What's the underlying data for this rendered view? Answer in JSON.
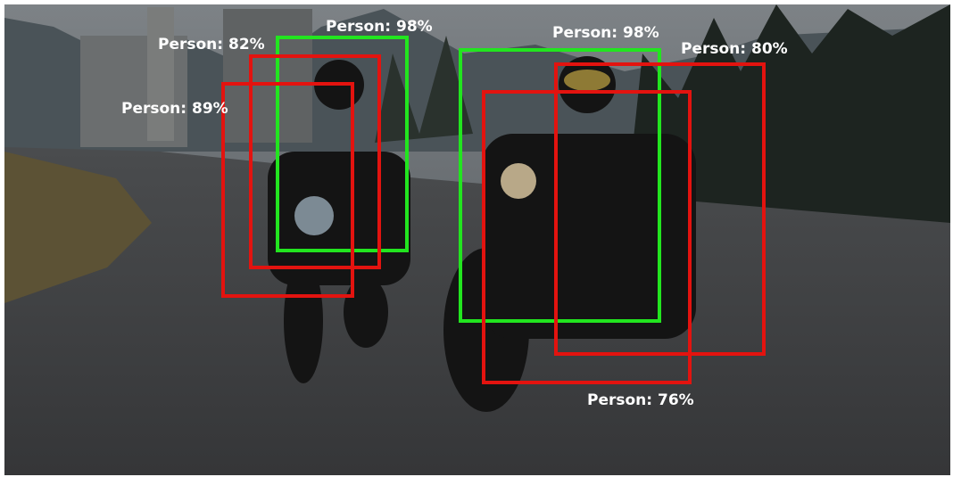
{
  "detections": [
    {
      "label": "Person: 98%"
    },
    {
      "label": "Person: 82%"
    },
    {
      "label": "Person: 89%"
    },
    {
      "label": "Person: 98%"
    },
    {
      "label": "Person: 80%"
    },
    {
      "label": "Person: 76%"
    }
  ]
}
